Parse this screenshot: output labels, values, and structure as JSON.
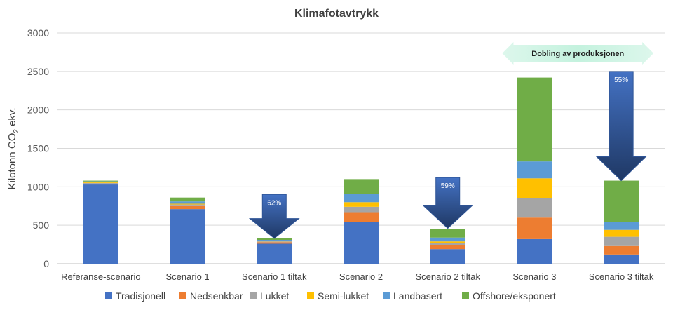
{
  "chart_data": {
    "type": "bar",
    "stacked": true,
    "title": "Klimafotavtrykk",
    "ylabel": "Kilotonn CO2 ekv.",
    "ylim": [
      0,
      3000
    ],
    "yticks": [
      0,
      500,
      1000,
      1500,
      2000,
      2500,
      3000
    ],
    "grid": true,
    "legend": "bottom",
    "categories": [
      "Referanse-scenario",
      "Scenario 1",
      "Scenario 1 tiltak",
      "Scenario 2",
      "Scenario 2 tiltak",
      "Scenario 3",
      "Scenario 3 tiltak"
    ],
    "series": [
      {
        "name": "Tradisjonell",
        "color": "#4472C4",
        "values": [
          1030,
          710,
          260,
          540,
          190,
          320,
          120
        ]
      },
      {
        "name": "Nedsenkbar",
        "color": "#ED7D31",
        "values": [
          10,
          40,
          20,
          130,
          50,
          280,
          110
        ]
      },
      {
        "name": "Lukket",
        "color": "#A5A5A5",
        "values": [
          10,
          20,
          10,
          70,
          30,
          250,
          120
        ]
      },
      {
        "name": "Semi-lukket",
        "color": "#FFC000",
        "values": [
          10,
          10,
          5,
          60,
          20,
          260,
          90
        ]
      },
      {
        "name": "Landbasert",
        "color": "#5B9BD5",
        "values": [
          10,
          30,
          15,
          110,
          50,
          220,
          100
        ]
      },
      {
        "name": "Offshore/eksponert",
        "color": "#70AD47",
        "values": [
          10,
          50,
          20,
          190,
          110,
          1090,
          540
        ]
      }
    ],
    "annotations": [
      {
        "label": "62%",
        "category": "Scenario 1 tiltak",
        "from": 900,
        "to": 330
      },
      {
        "label": "59%",
        "category": "Scenario 2 tiltak",
        "from": 1120,
        "to": 460
      },
      {
        "label": "55%",
        "category": "Scenario 3 tiltak",
        "from": 2500,
        "to": 1080
      }
    ],
    "banner": {
      "label": "Dobling av produksjonen",
      "from_category": "Scenario 3",
      "to_category": "Scenario 3 tiltak"
    }
  }
}
